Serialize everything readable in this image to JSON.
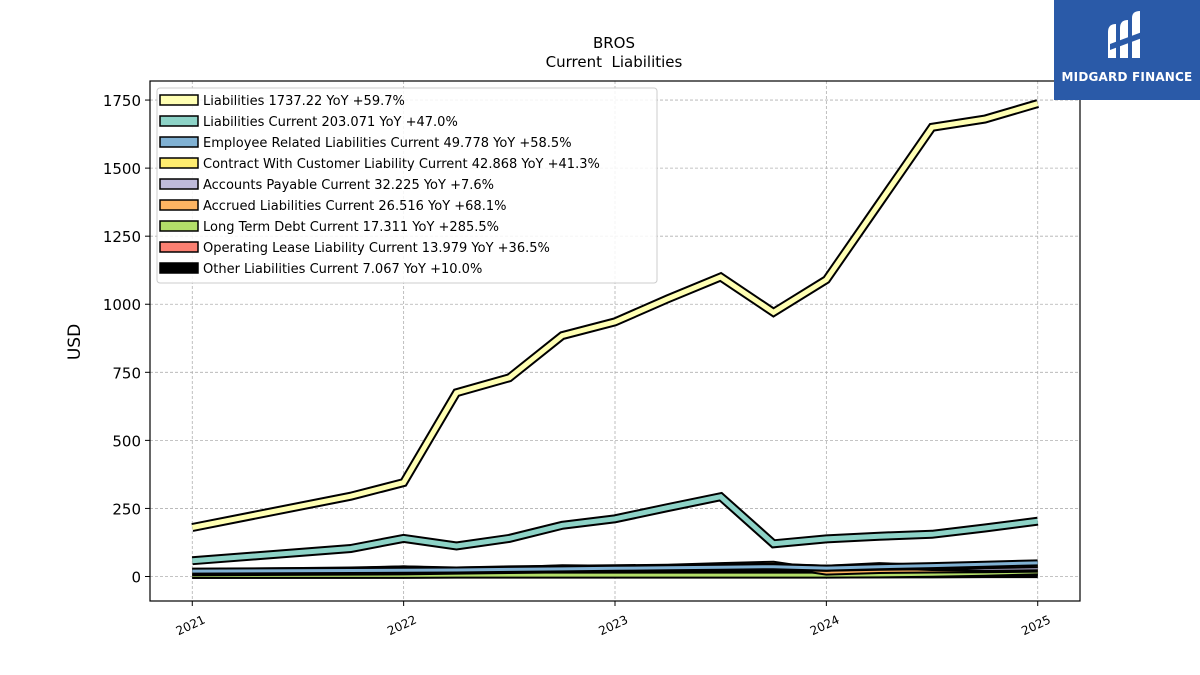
{
  "chart_data": {
    "type": "line",
    "title": "BROS",
    "subtitle": "Current  Liabilities",
    "ylabel": "USD",
    "xlabel": "",
    "ylim": [
      -90,
      1820
    ],
    "xlim": [
      2020.8,
      2025.2
    ],
    "yticks": [
      0,
      250,
      500,
      750,
      1000,
      1250,
      1500,
      1750
    ],
    "xticks": [
      2021,
      2022,
      2023,
      2024,
      2025
    ],
    "xtick_labels": [
      "2021",
      "2022",
      "2023",
      "2024",
      "2025"
    ],
    "grid": true,
    "legend_position": "top-left",
    "x": [
      2021.0,
      2021.75,
      2022.0,
      2022.25,
      2022.5,
      2022.75,
      2023.0,
      2023.25,
      2023.5,
      2023.75,
      2024.0,
      2024.25,
      2024.5,
      2024.75,
      2025.0
    ],
    "series": [
      {
        "name": "Liabilities",
        "label": "Liabilities  1737.22 YoY +59.7%",
        "color": "#ffffb3",
        "values": [
          180,
          295,
          345,
          675,
          730,
          885,
          935,
          1020,
          1100,
          970,
          1090,
          1370,
          1650,
          1680,
          1737
        ]
      },
      {
        "name": "Liabilities Current",
        "label": "Liabilities Current  203.071 YoY +47.0%",
        "color": "#8dd3c7",
        "values": [
          58,
          103,
          140,
          112,
          140,
          188,
          212,
          253,
          293,
          120,
          138,
          148,
          155,
          178,
          203
        ]
      },
      {
        "name": "Employee Related Liabilities Current",
        "label": "Employee Related Liabilities Current  49.778 YoY +58.5%",
        "color": "#80b1d3",
        "values": [
          20,
          22,
          23,
          24,
          26,
          28,
          30,
          32,
          34,
          36,
          31,
          36,
          40,
          45,
          50
        ]
      },
      {
        "name": "Contract With Customer Liability Current",
        "label": "Contract With Customer Liability Current  42.868 YoY +41.3%",
        "color": "#ffed6f",
        "values": [
          14,
          16,
          17,
          20,
          22,
          25,
          27,
          28,
          30,
          32,
          30,
          34,
          36,
          40,
          43
        ]
      },
      {
        "name": "Accounts Payable Current",
        "label": "Accounts Payable Current  32.225 YoY +7.6%",
        "color": "#bebada",
        "values": [
          18,
          24,
          28,
          22,
          25,
          32,
          30,
          33,
          35,
          38,
          30,
          40,
          33,
          30,
          32
        ]
      },
      {
        "name": "Accrued Liabilities Current",
        "label": "Accrued Liabilities Current  26.516 YoY +68.1%",
        "color": "#fdb462",
        "values": [
          15,
          22,
          28,
          24,
          28,
          30,
          32,
          34,
          40,
          45,
          16,
          22,
          24,
          25,
          27
        ]
      },
      {
        "name": "Long Term Debt Current",
        "label": "Long Term Debt Current  17.311 YoY +285.5%",
        "color": "#b3de69",
        "values": [
          4,
          4,
          4,
          5,
          5,
          5,
          5,
          5,
          5,
          5,
          5,
          6,
          8,
          12,
          17
        ]
      },
      {
        "name": "Operating Lease Liability Current",
        "label": "Operating Lease Liability Current  13.979 YoY +36.5%",
        "color": "#fb8072",
        "values": [
          5,
          7,
          8,
          8,
          9,
          9,
          10,
          10,
          11,
          11,
          10,
          11,
          12,
          13,
          14
        ]
      },
      {
        "name": "Other Liabilities Current",
        "label": "Other Liabilities Current  7.067 YoY +10.0%",
        "color": "#000000",
        "values": [
          4,
          5,
          6,
          6,
          6,
          6,
          6,
          6,
          6,
          6,
          6,
          6,
          6,
          7,
          7
        ]
      }
    ]
  },
  "watermark": {
    "brand": "MIDGARD FINANCE",
    "color": "#2a5aa8"
  }
}
